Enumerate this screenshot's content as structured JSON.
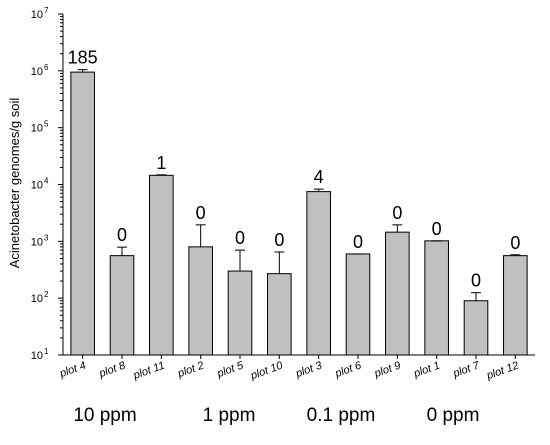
{
  "chart_data": {
    "type": "bar",
    "ylabel": "Acinetobacter genomes/g soil",
    "yscale": "log",
    "ylim": [
      10,
      10000000
    ],
    "yticks": [
      {
        "base": "10",
        "exp": "1"
      },
      {
        "base": "10",
        "exp": "2"
      },
      {
        "base": "10",
        "exp": "3"
      },
      {
        "base": "10",
        "exp": "4"
      },
      {
        "base": "10",
        "exp": "5"
      },
      {
        "base": "10",
        "exp": "6"
      },
      {
        "base": "10",
        "exp": "7"
      }
    ],
    "categories": [
      "plot 4",
      "plot 8",
      "plot 11",
      "plot 2",
      "plot 5",
      "plot 10",
      "plot 3",
      "plot 6",
      "plot 9",
      "plot 1",
      "plot 7",
      "plot 12"
    ],
    "values": [
      950000,
      560,
      14500,
      800,
      300,
      270,
      7500,
      600,
      1450,
      1020,
      90,
      560
    ],
    "error_upper": [
      1050000,
      790,
      14800,
      1950,
      700,
      650,
      8300,
      600,
      1950,
      1020,
      125,
      580
    ],
    "data_labels": [
      "185",
      "0",
      "1",
      "0",
      "0",
      "0",
      "4",
      "0",
      "0",
      "0",
      "0",
      "0"
    ],
    "groups": [
      "10 ppm",
      "1 ppm",
      "0.1 ppm",
      "0 ppm"
    ]
  }
}
